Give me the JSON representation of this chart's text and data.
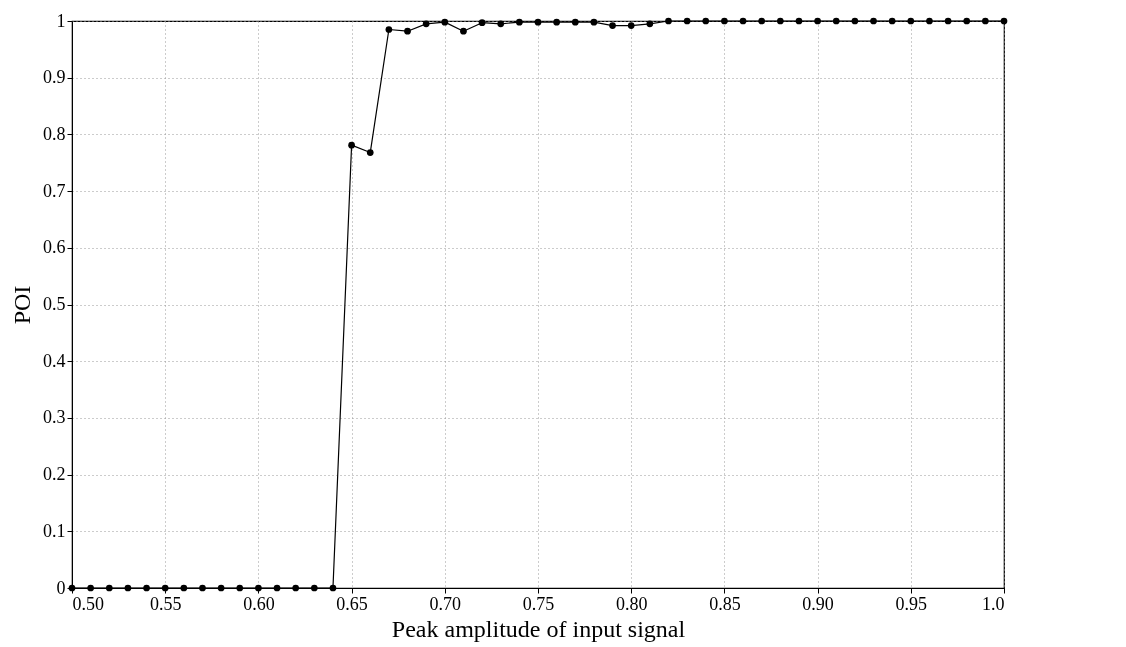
{
  "chart_data": {
    "type": "line",
    "xlabel": "Peak amplitude of input signal",
    "ylabel": "POI",
    "x": [
      0.5,
      0.51,
      0.52,
      0.53,
      0.54,
      0.55,
      0.56,
      0.57,
      0.58,
      0.59,
      0.6,
      0.61,
      0.62,
      0.63,
      0.64,
      0.65,
      0.66,
      0.67,
      0.68,
      0.69,
      0.7,
      0.71,
      0.72,
      0.73,
      0.74,
      0.75,
      0.76,
      0.77,
      0.78,
      0.79,
      0.8,
      0.81,
      0.82,
      0.83,
      0.84,
      0.85,
      0.86,
      0.87,
      0.88,
      0.89,
      0.9,
      0.91,
      0.92,
      0.93,
      0.94,
      0.95,
      0.96,
      0.97,
      0.98,
      0.99,
      1.0
    ],
    "series": [
      {
        "color": "#000000",
        "values": [
          0,
          0,
          0,
          0,
          0,
          0,
          0,
          0,
          0,
          0,
          0,
          0,
          0,
          0,
          0,
          0.781,
          0.768,
          0.985,
          0.982,
          0.995,
          0.998,
          0.982,
          0.997,
          0.995,
          0.998,
          0.998,
          0.998,
          0.998,
          0.998,
          0.992,
          0.992,
          0.995,
          1,
          1,
          1,
          1,
          1,
          1,
          1,
          1,
          1,
          1,
          1,
          1,
          1,
          1,
          1,
          1,
          1,
          1,
          1
        ]
      }
    ],
    "xlim": [
      0.5,
      1.0
    ],
    "xticks": [
      {
        "value": 0.5,
        "label": "0.50"
      },
      {
        "value": 0.55,
        "label": "0.55"
      },
      {
        "value": 0.6,
        "label": "0.60"
      },
      {
        "value": 0.65,
        "label": "0.65"
      },
      {
        "value": 0.7,
        "label": "0.70"
      },
      {
        "value": 0.75,
        "label": "0.75"
      },
      {
        "value": 0.8,
        "label": "0.80"
      },
      {
        "value": 0.85,
        "label": "0.85"
      },
      {
        "value": 0.9,
        "label": "0.90"
      },
      {
        "value": 0.95,
        "label": "0.95"
      },
      {
        "value": 1.0,
        "label": "1.0"
      }
    ],
    "ylim": [
      0,
      1
    ],
    "yticks": [
      0,
      0.1,
      0.2,
      0.3,
      0.4,
      0.5,
      0.6,
      0.7,
      0.8,
      0.9,
      1
    ],
    "grid": true,
    "marker": "circle",
    "line_style": "solid"
  }
}
